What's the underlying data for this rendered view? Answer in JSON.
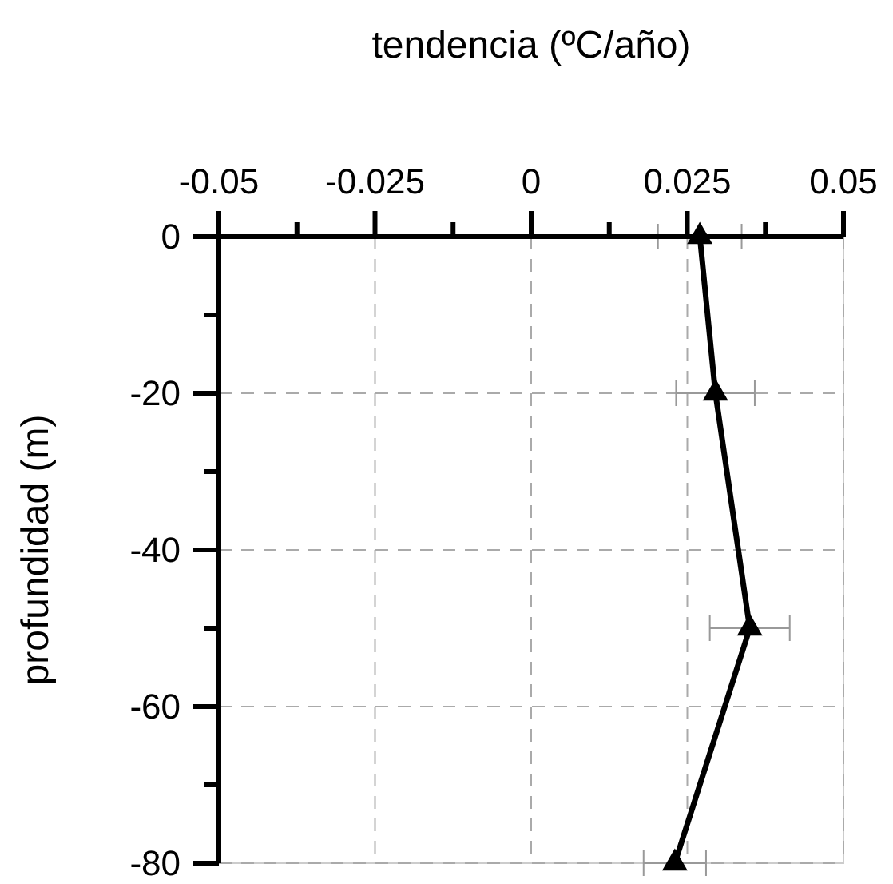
{
  "chart_data": {
    "type": "line",
    "xlabel": "tendencia (ºC/año)",
    "ylabel": "profundidad (m)",
    "xlim": [
      -0.05,
      0.05
    ],
    "xticks": [
      -0.05,
      {
        "value": -0.0375,
        "label": null
      },
      -0.025,
      {
        "value": -0.0125,
        "label": null
      },
      0,
      {
        "value": 0.0125,
        "label": null
      },
      0.025,
      {
        "value": 0.0375,
        "label": null
      },
      0.05
    ],
    "ylim": [
      -80,
      0
    ],
    "yticks": [
      0,
      {
        "value": -10,
        "label": null
      },
      -20,
      {
        "value": -30,
        "label": null
      },
      -40,
      {
        "value": -50,
        "label": null
      },
      -60,
      {
        "value": -70,
        "label": null
      },
      -80
    ],
    "grid": true,
    "marker": "triangle",
    "line_style": "solid",
    "series": [
      {
        "color": "#000000",
        "x": [
          0.027,
          0.0295,
          0.035,
          0.023
        ],
        "values": [
          0,
          -20,
          -50,
          -80
        ],
        "xerrors": [
          0.0067,
          0.0063,
          0.0064,
          0.005
        ]
      }
    ]
  }
}
